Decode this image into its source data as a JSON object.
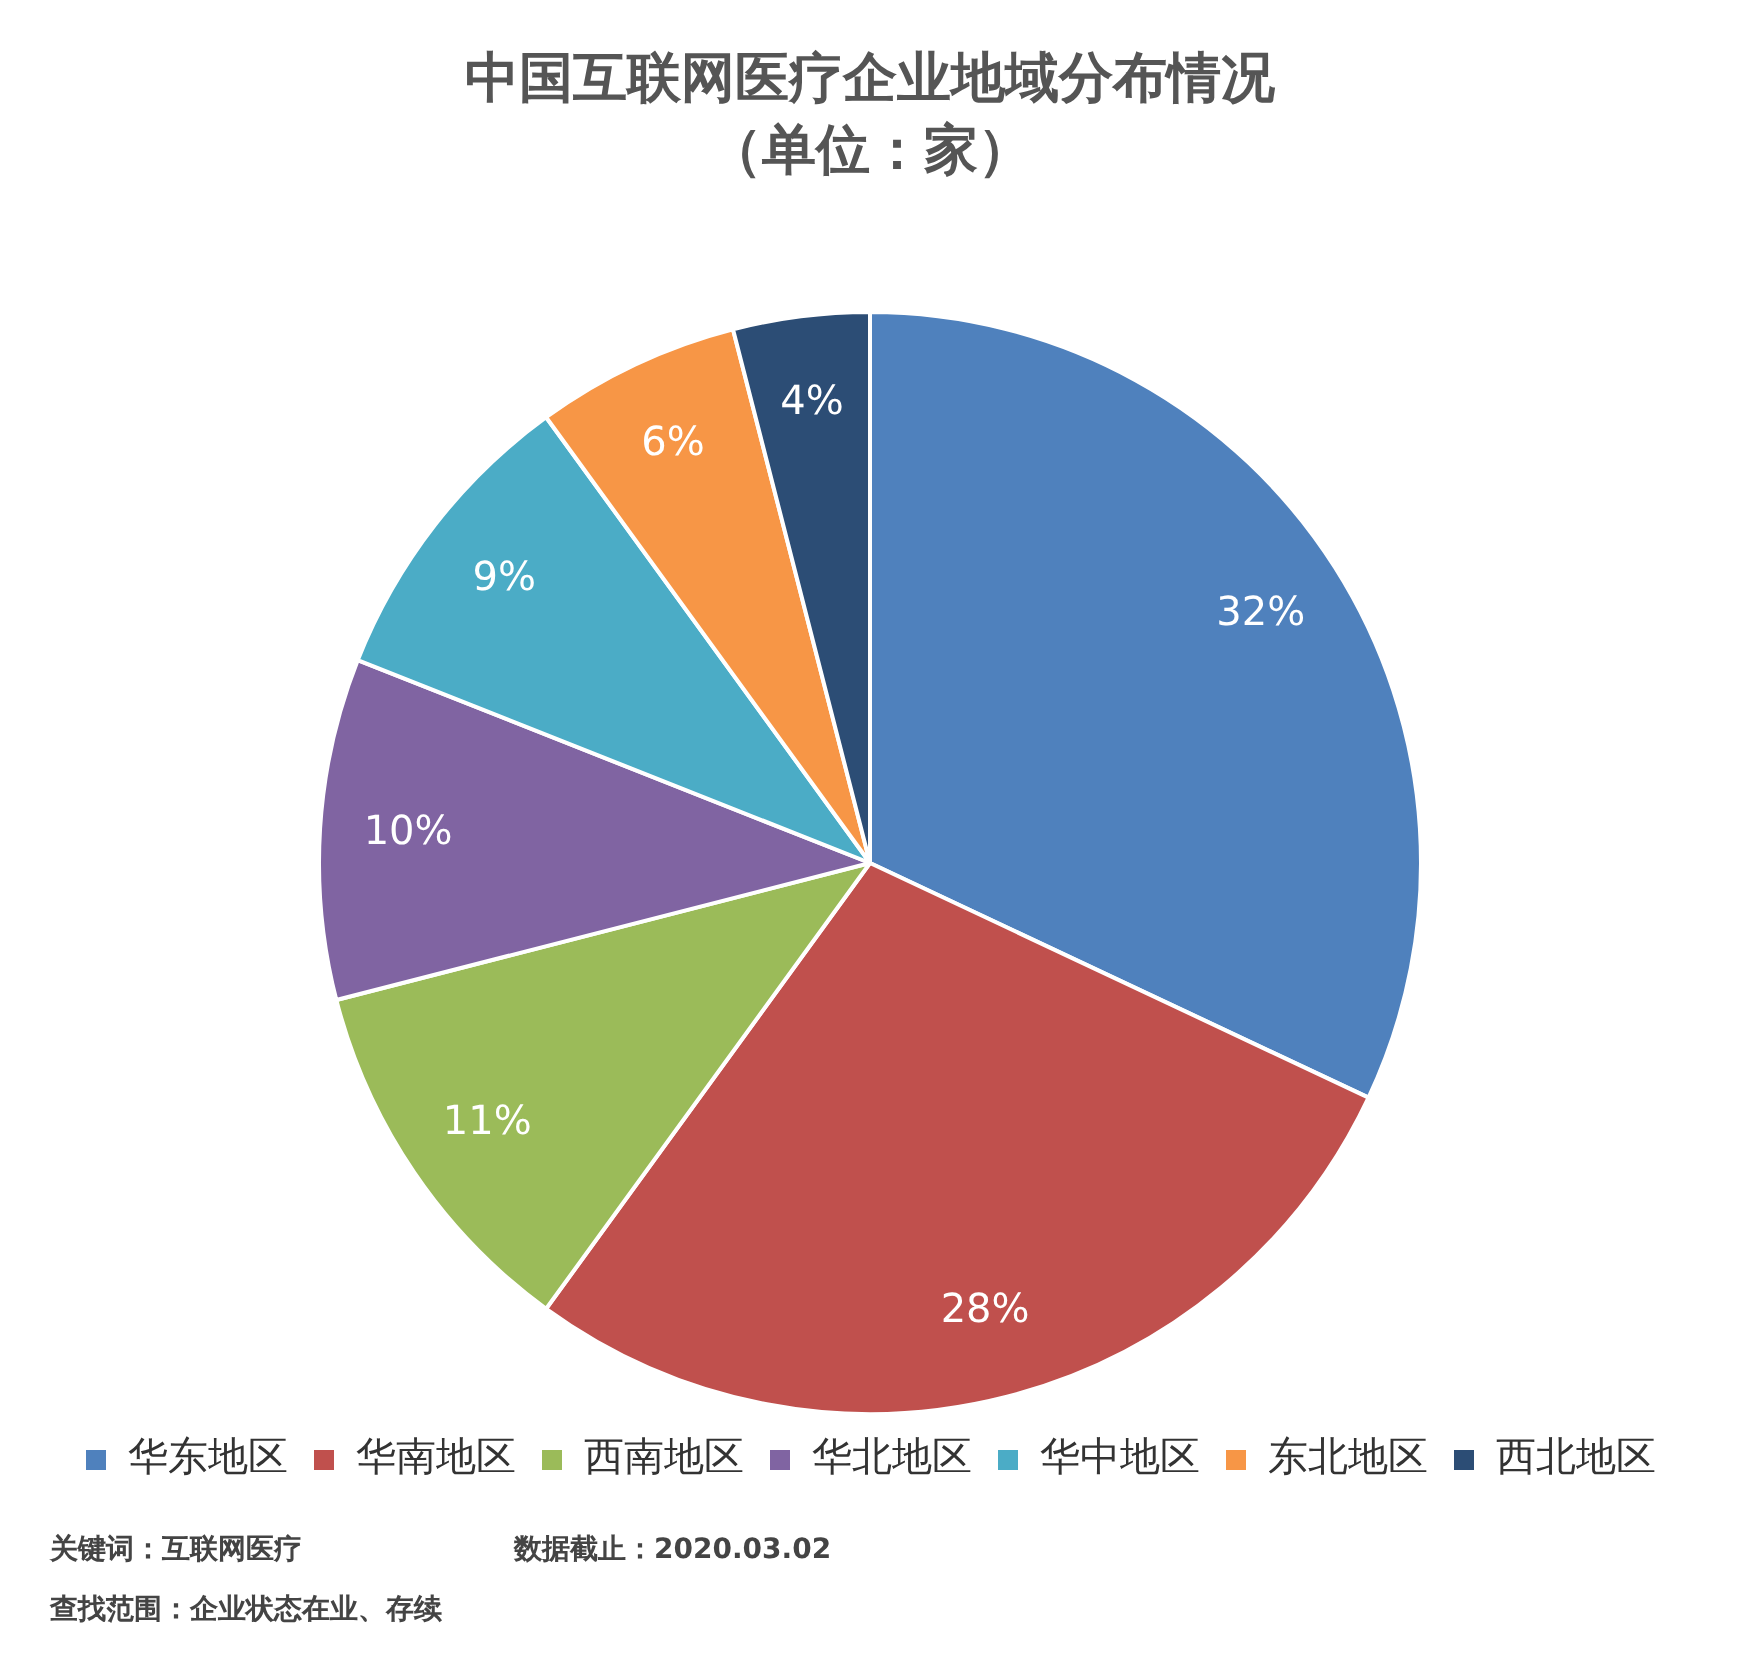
{
  "chart_data": {
    "type": "pie",
    "title": "中国互联网医疗企业地域分布情况",
    "subtitle": "（单位：家）",
    "categories": [
      "华东地区",
      "华南地区",
      "西南地区",
      "华北地区",
      "华中地区",
      "东北地区",
      "西北地区"
    ],
    "values": [
      32,
      28,
      11,
      10,
      9,
      6,
      4
    ],
    "value_labels": [
      "32%",
      "28%",
      "11%",
      "10%",
      "9%",
      "6%",
      "4%"
    ],
    "colors": [
      "#4f81bd",
      "#c0504d",
      "#9bbb59",
      "#8064a2",
      "#4bacc6",
      "#f79646",
      "#2c4d75"
    ],
    "legend": "bottom",
    "annotations": [
      "关键词：互联网医疗",
      "数据截止：2020.03.02",
      "查找范围：企业状态在业、存续"
    ]
  }
}
